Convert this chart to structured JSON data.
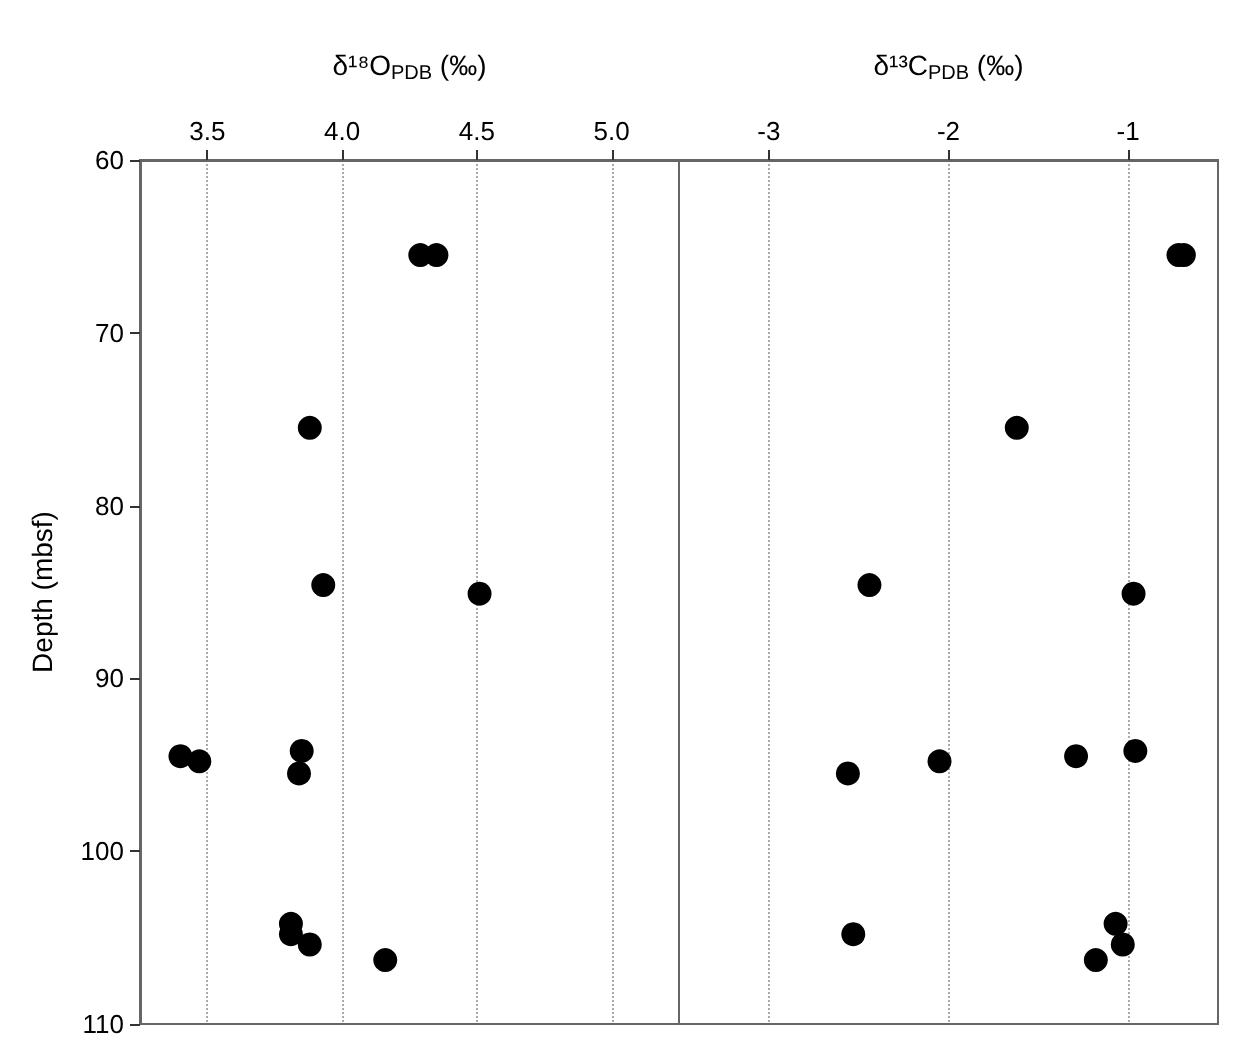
{
  "chart_data": [
    {
      "type": "scatter",
      "xlabel": "δ¹⁸O$_{PDB}$ (‰)",
      "ylabel": "Depth (mbsf)",
      "xlim": [
        3.25,
        5.25
      ],
      "xticks": [
        3.5,
        {
          "value": 4,
          "label": "4.0"
        },
        4.5,
        {
          "value": 5,
          "label": "5.0"
        }
      ],
      "ylim": [
        110,
        60
      ],
      "yticks": [
        60,
        70,
        80,
        90,
        100,
        110
      ],
      "grid": "x",
      "marker": "circle",
      "series": [
        {
          "color": "#000000",
          "x": [
            4.29,
            4.35,
            3.88,
            3.93,
            4.51,
            3.85,
            3.4,
            3.47,
            3.84,
            3.81,
            3.81,
            3.88,
            4.16
          ],
          "values": [
            65.5,
            65.5,
            75.5,
            84.6,
            85.1,
            94.2,
            94.5,
            94.8,
            95.5,
            104.2,
            104.8,
            105.4,
            106.3
          ]
        }
      ]
    },
    {
      "type": "scatter",
      "xlabel": "δ¹³C$_{PDB}$ (‰)",
      "xlim": [
        -3.5,
        -0.5
      ],
      "xticks": [
        -3,
        -2,
        -1
      ],
      "ylim": [
        110,
        60
      ],
      "tick_labels": "x",
      "grid": "x",
      "marker": "circle",
      "series": [
        {
          "color": "#000000",
          "x": [
            -0.72,
            -0.69,
            -1.62,
            -2.44,
            -0.97,
            -0.96,
            -1.29,
            -2.05,
            -2.56,
            -1.07,
            -2.53,
            -1.03,
            -1.18
          ],
          "values": [
            65.5,
            65.5,
            75.5,
            84.6,
            85.1,
            94.2,
            94.5,
            94.8,
            95.5,
            104.2,
            104.8,
            105.4,
            106.3
          ]
        }
      ]
    }
  ]
}
